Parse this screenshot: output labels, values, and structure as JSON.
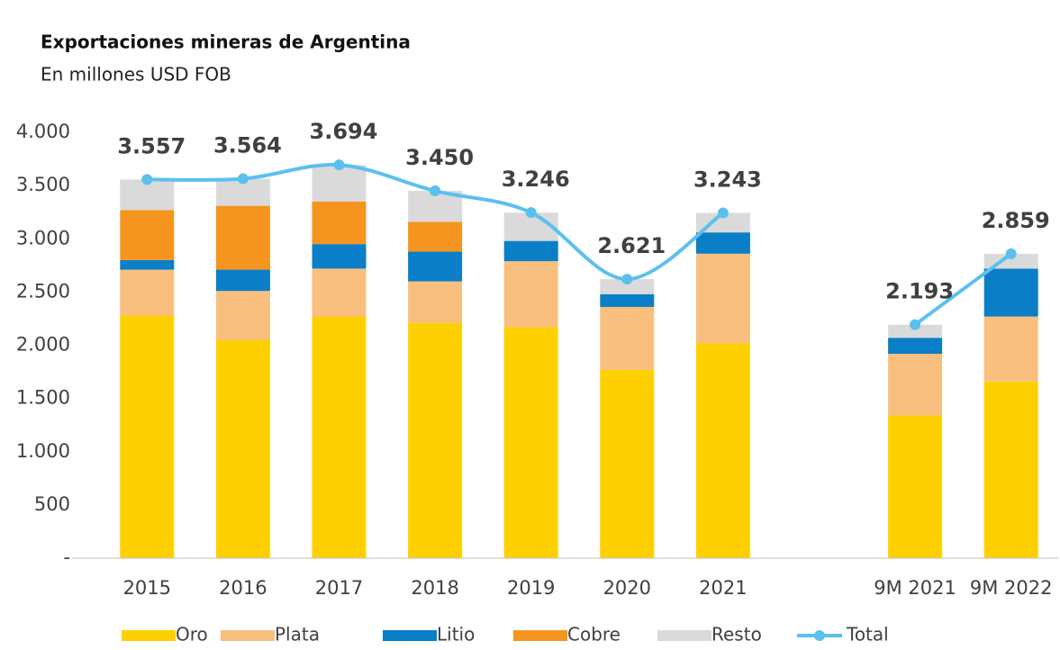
{
  "chart_data": {
    "type": "bar",
    "stacked": true,
    "title": "Exportaciones mineras de Argentina",
    "subtitle": "En millones USD FOB",
    "categories": [
      "2015",
      "2016",
      "2017",
      "2018",
      "2019",
      "2020",
      "2021",
      null,
      "9M 2021",
      "9M 2022"
    ],
    "series": [
      {
        "name": "Oro",
        "color": "#FFD000",
        "values": [
          2280,
          2050,
          2270,
          2210,
          2170,
          1770,
          2020,
          null,
          1340,
          1660
        ]
      },
      {
        "name": "Plata",
        "color": "#F8BF7E",
        "values": [
          430,
          460,
          450,
          390,
          620,
          590,
          840,
          null,
          580,
          610
        ]
      },
      {
        "name": "Litio",
        "color": "#0A7EC7",
        "values": [
          90,
          200,
          230,
          280,
          190,
          120,
          200,
          null,
          150,
          450
        ]
      },
      {
        "name": "Cobre",
        "color": "#F5951F",
        "values": [
          470,
          600,
          400,
          280,
          0,
          0,
          0,
          null,
          0,
          0
        ]
      },
      {
        "name": "Resto",
        "color": "#DADADA",
        "values": [
          287,
          254,
          344,
          290,
          266,
          141,
          183,
          null,
          123,
          139
        ]
      },
      {
        "name": "Total",
        "type": "line",
        "color": "#5BC0EE",
        "values": [
          3557,
          3564,
          3694,
          3450,
          3246,
          2621,
          3243,
          null,
          2193,
          2859
        ],
        "value_labels": [
          "3.557",
          "3.564",
          "3.694",
          "3.450",
          "3.246",
          "2.621",
          "3.243",
          null,
          "2.193",
          "2.859"
        ]
      }
    ],
    "ylim": [
      0,
      4000
    ],
    "yticks": [
      {
        "value": 0,
        "label": "-"
      },
      500,
      {
        "value": 1000,
        "label": "1.000"
      },
      {
        "value": 1500,
        "label": "1.500"
      },
      {
        "value": 2000,
        "label": "2.000"
      },
      {
        "value": 2500,
        "label": "2.500"
      },
      {
        "value": 3000,
        "label": "3.000"
      },
      {
        "value": 3500,
        "label": "3.500"
      },
      {
        "value": 4000,
        "label": "4.000"
      }
    ],
    "grid": false,
    "legend": "bottom"
  }
}
